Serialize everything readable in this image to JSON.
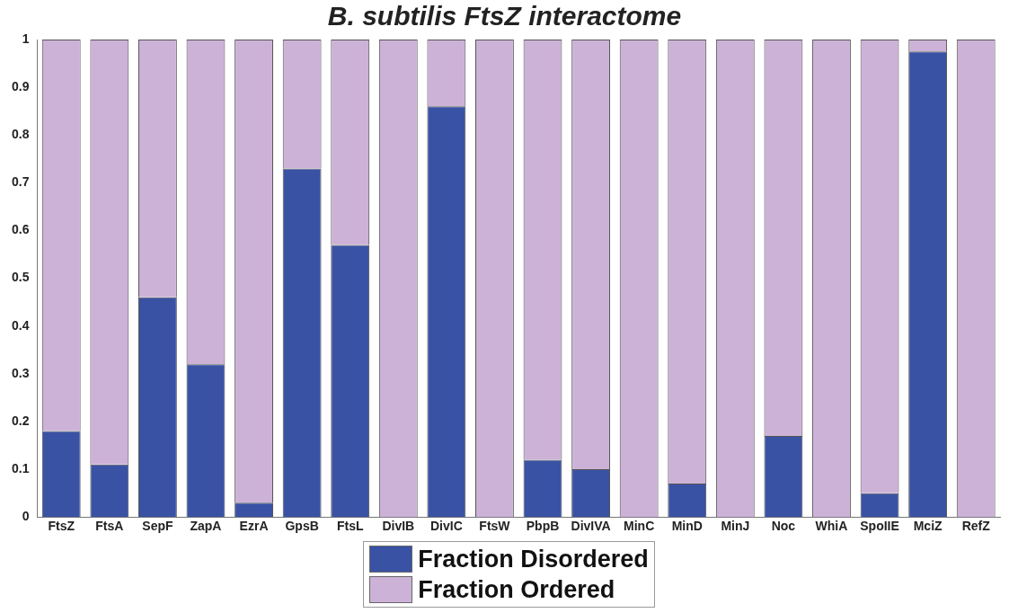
{
  "chart_data": {
    "type": "bar",
    "title": "B. subtilis FtsZ interactome",
    "stacked": true,
    "legend": "bottom",
    "grid": false,
    "categories": [
      "FtsZ",
      "FtsA",
      "SepF",
      "ZapA",
      "EzrA",
      "GpsB",
      "FtsL",
      "DivIB",
      "DivIC",
      "FtsW",
      "PbpB",
      "DivIVA",
      "MinC",
      "MinD",
      "MinJ",
      "Noc",
      "WhiA",
      "SpoIIE",
      "MciZ",
      "RefZ"
    ],
    "series": [
      {
        "name": "Fraction Disordered",
        "color": "#3a52a4",
        "values": [
          0.18,
          0.11,
          0.46,
          0.32,
          0.03,
          0.73,
          0.57,
          0,
          0.86,
          0,
          0.12,
          0.1,
          0,
          0.07,
          0,
          0.17,
          0,
          0.05,
          0.975,
          0
        ]
      },
      {
        "name": "Fraction Ordered",
        "color": "#cdb2d8",
        "values": [
          0.82,
          0.89,
          0.54,
          0.68,
          0.97,
          0.27,
          0.43,
          1,
          0.14,
          1,
          0.88,
          0.9,
          1,
          0.93,
          1,
          0.83,
          1,
          0.95,
          0.025,
          1
        ]
      }
    ],
    "ylim": [
      0,
      1
    ],
    "yticks": [
      0,
      0.1,
      0.2,
      0.3,
      0.4,
      0.5,
      0.6,
      0.7,
      0.8,
      0.9,
      1
    ]
  }
}
